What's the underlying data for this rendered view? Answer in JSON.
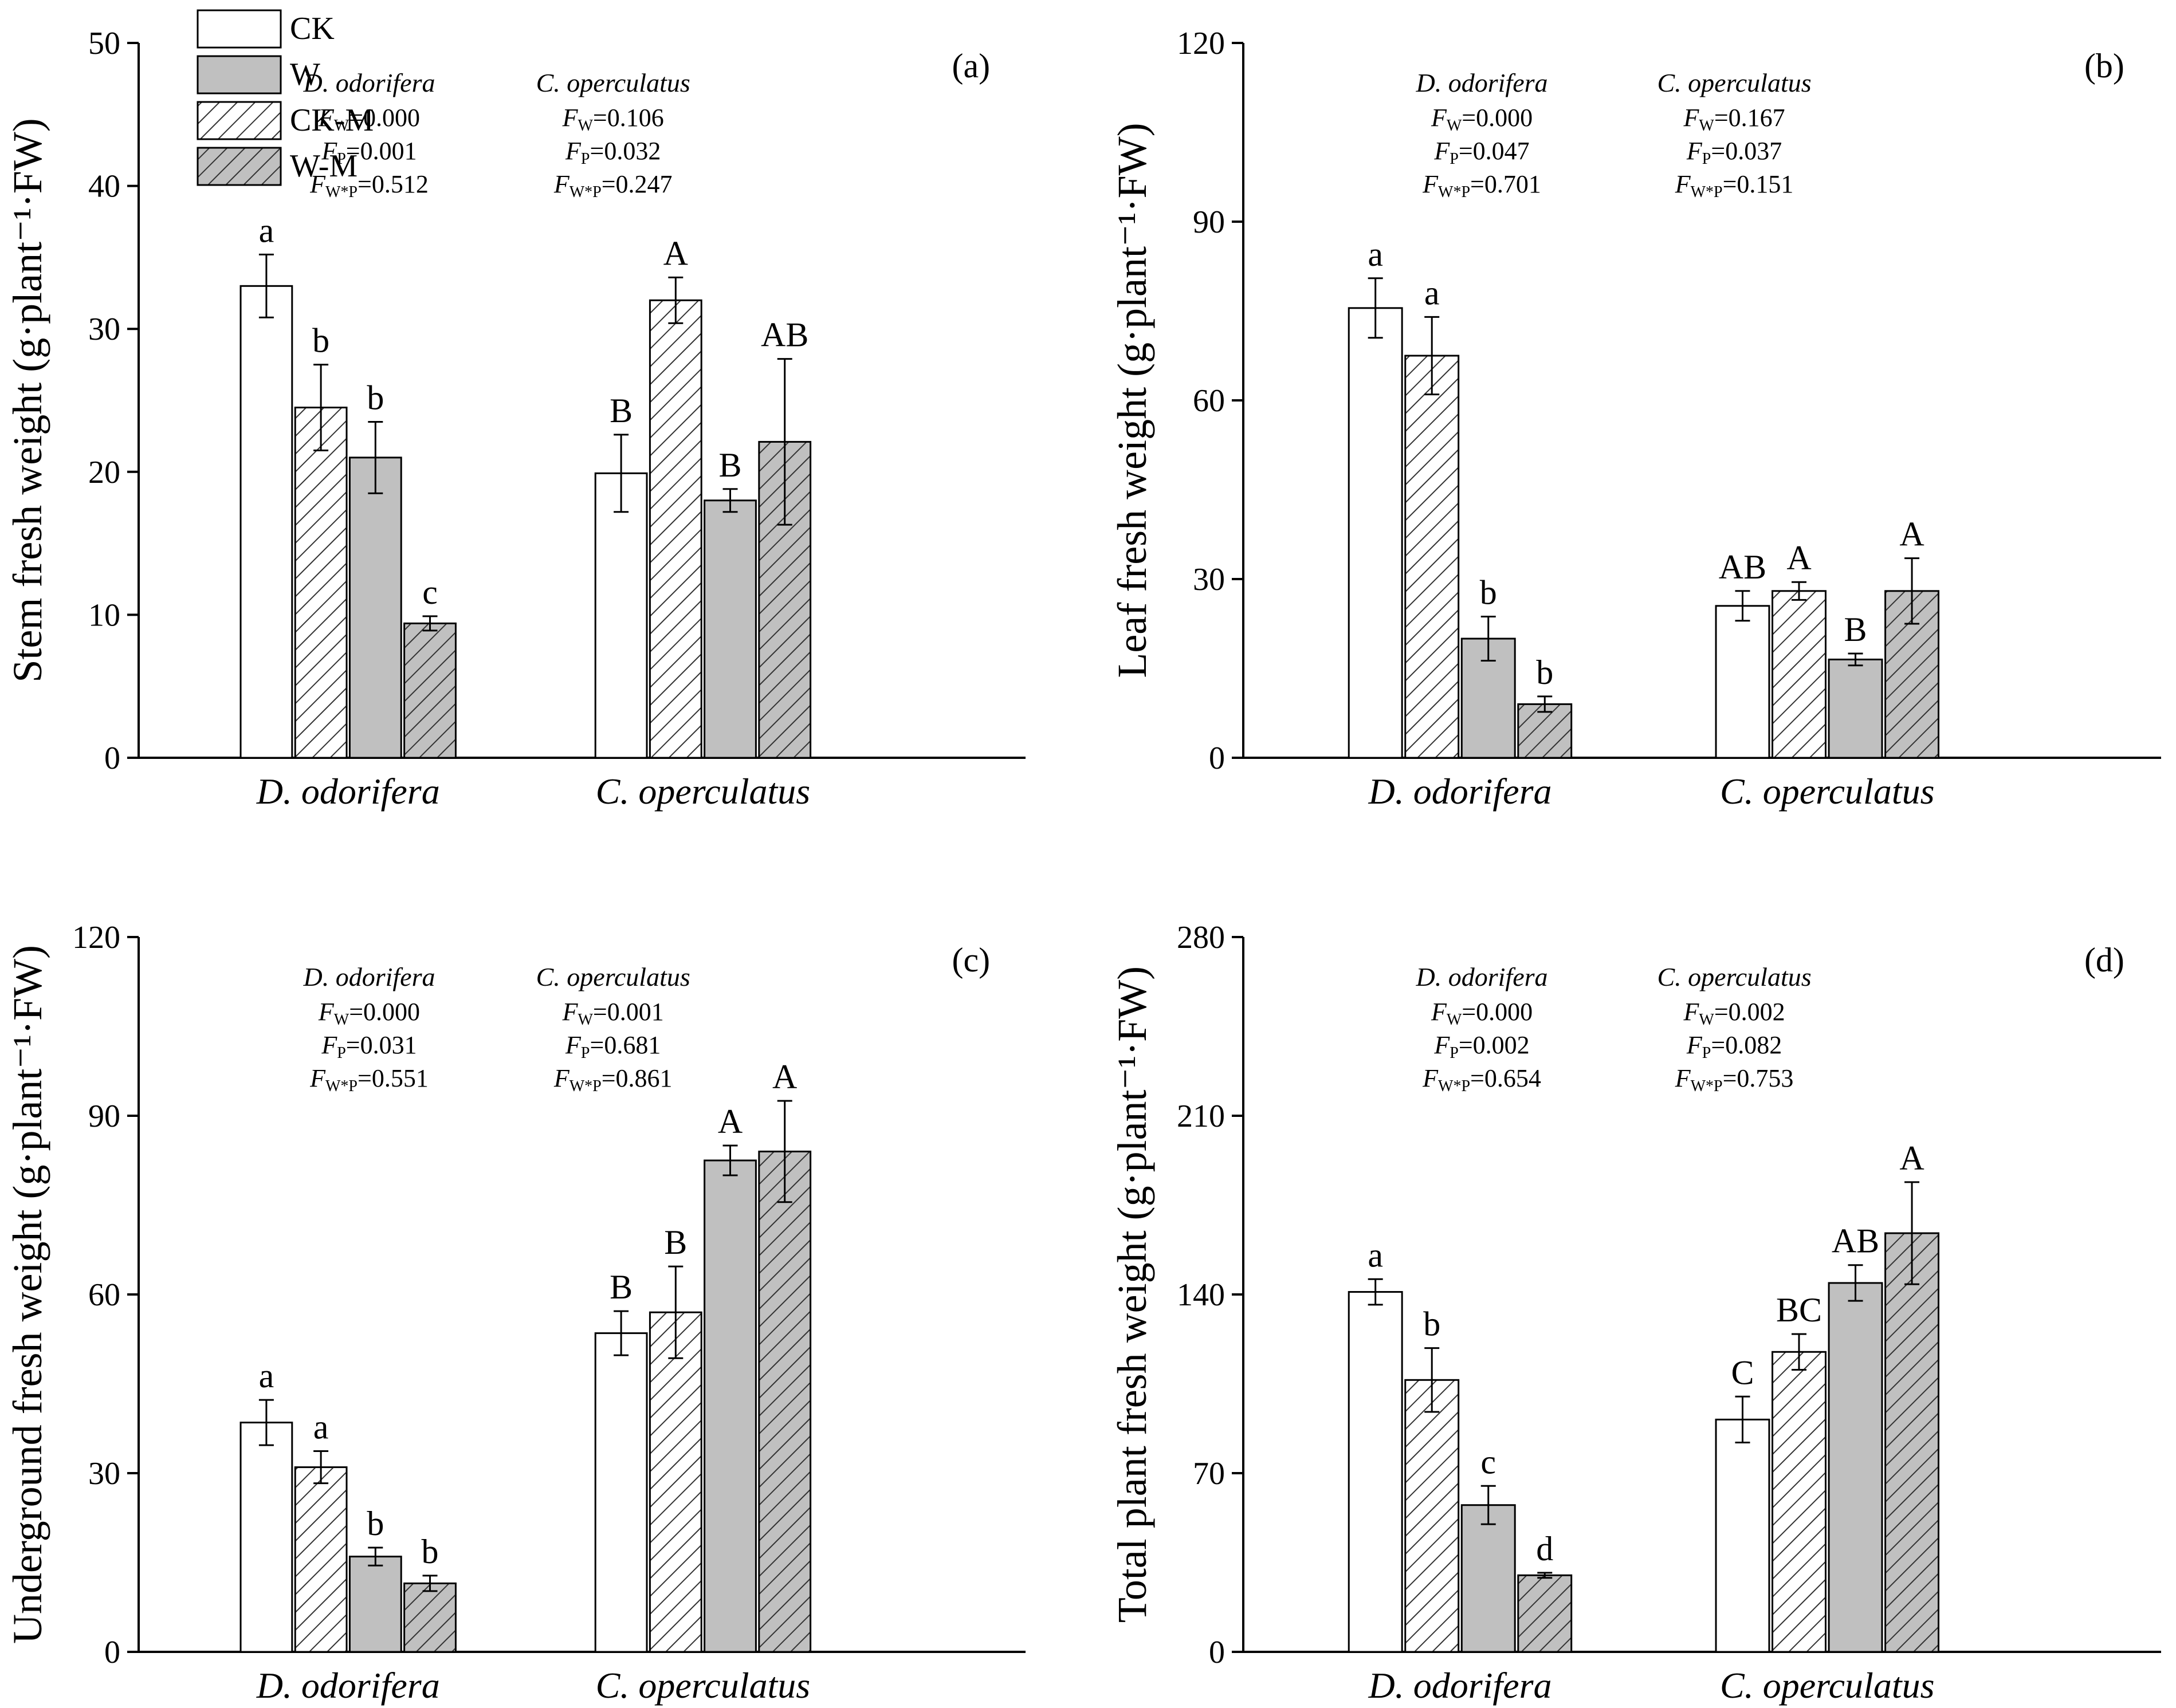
{
  "colors": {
    "W": "#c0c0c0",
    "CK": "#ffffff",
    "hatch": "#333333",
    "axis": "#000000"
  },
  "chart_data": [
    {
      "type": "bar",
      "panel": "(a)",
      "ylabel": "Stem fresh weight (g·plant⁻¹·FW)",
      "ylim": [
        0,
        50
      ],
      "yticks": [
        0,
        10,
        20,
        30,
        40,
        50
      ],
      "categories": [
        "D. odorifera",
        "C. operculatus"
      ],
      "legend_placement": "top-left",
      "series": [
        {
          "name": "CK",
          "values": [
            33.0,
            19.9
          ],
          "errors": [
            2.2,
            2.7
          ],
          "letters": [
            "a",
            "B"
          ]
        },
        {
          "name": "CK-M",
          "values": [
            24.5,
            32.0
          ],
          "errors": [
            3.0,
            1.6
          ],
          "letters": [
            "b",
            "A"
          ]
        },
        {
          "name": "W",
          "values": [
            21.0,
            18.0
          ],
          "errors": [
            2.5,
            0.8
          ],
          "letters": [
            "b",
            "B"
          ]
        },
        {
          "name": "W-M",
          "values": [
            9.4,
            22.1
          ],
          "errors": [
            0.5,
            5.8
          ],
          "letters": [
            "c",
            "AB"
          ]
        }
      ],
      "stats": {
        "headers": [
          "D. odorifera",
          "C. operculatus"
        ],
        "rows": [
          {
            "F": "F",
            "sub": "W",
            "values": [
              "=0.000",
              "=0.106"
            ]
          },
          {
            "F": "F",
            "sub": "P",
            "values": [
              "=0.001",
              "=0.032"
            ]
          },
          {
            "F": "F",
            "sub": "W*P",
            "values": [
              "=0.512",
              "=0.247"
            ]
          }
        ]
      }
    },
    {
      "type": "bar",
      "panel": "(b)",
      "ylabel": "Leaf  fresh weight (g·plant⁻¹·FW)",
      "ylim": [
        0,
        120
      ],
      "yticks": [
        0,
        30,
        60,
        90,
        120
      ],
      "categories": [
        "D. odorifera",
        "C. operculatus"
      ],
      "series": [
        {
          "name": "CK",
          "values": [
            75.5,
            25.5
          ],
          "errors": [
            5.0,
            2.5
          ],
          "letters": [
            "a",
            "AB"
          ]
        },
        {
          "name": "CK-M",
          "values": [
            67.5,
            28.0
          ],
          "errors": [
            6.5,
            1.5
          ],
          "letters": [
            "a",
            "A"
          ]
        },
        {
          "name": "W",
          "values": [
            20.0,
            16.5
          ],
          "errors": [
            3.7,
            1.0
          ],
          "letters": [
            "b",
            "B"
          ]
        },
        {
          "name": "W-M",
          "values": [
            9.0,
            28.0
          ],
          "errors": [
            1.3,
            5.5
          ],
          "letters": [
            "b",
            "A"
          ]
        }
      ],
      "stats": {
        "headers": [
          "D. odorifera",
          "C. operculatus"
        ],
        "rows": [
          {
            "F": "F",
            "sub": "W",
            "values": [
              "=0.000",
              "=0.167"
            ]
          },
          {
            "F": "F",
            "sub": "P",
            "values": [
              "=0.047",
              "=0.037"
            ]
          },
          {
            "F": "F",
            "sub": "W*P",
            "values": [
              "=0.701",
              "=0.151"
            ]
          }
        ]
      }
    },
    {
      "type": "bar",
      "panel": "(c)",
      "ylabel": "Underground fresh weight (g·plant⁻¹·FW)",
      "ylim": [
        0,
        120
      ],
      "yticks": [
        0,
        30,
        60,
        90,
        120
      ],
      "categories": [
        "D. odorifera",
        "C. operculatus"
      ],
      "series": [
        {
          "name": "CK",
          "values": [
            38.5,
            53.5
          ],
          "errors": [
            3.8,
            3.7
          ],
          "letters": [
            "a",
            "B"
          ]
        },
        {
          "name": "CK-M",
          "values": [
            31.0,
            57.0
          ],
          "errors": [
            2.7,
            7.7
          ],
          "letters": [
            "a",
            "B"
          ]
        },
        {
          "name": "W",
          "values": [
            16.0,
            82.5
          ],
          "errors": [
            1.5,
            2.5
          ],
          "letters": [
            "b",
            "A"
          ]
        },
        {
          "name": "W-M",
          "values": [
            11.5,
            84.0
          ],
          "errors": [
            1.3,
            8.5
          ],
          "letters": [
            "b",
            "A"
          ]
        }
      ],
      "stats": {
        "headers": [
          "D. odorifera",
          "C. operculatus"
        ],
        "rows": [
          {
            "F": "F",
            "sub": "W",
            "values": [
              "=0.000",
              "=0.001"
            ]
          },
          {
            "F": "F",
            "sub": "P",
            "values": [
              "=0.031",
              "=0.681"
            ]
          },
          {
            "F": "F",
            "sub": "W*P",
            "values": [
              "=0.551",
              "=0.861"
            ]
          }
        ]
      }
    },
    {
      "type": "bar",
      "panel": "(d)",
      "ylabel": "Total plant fresh weight (g·plant⁻¹·FW)",
      "ylim": [
        0,
        280
      ],
      "yticks": [
        0,
        70,
        140,
        210,
        280
      ],
      "categories": [
        "D. odorifera",
        "C. operculatus"
      ],
      "series": [
        {
          "name": "CK",
          "values": [
            141.0,
            91.0
          ],
          "errors": [
            5.0,
            9.0
          ],
          "letters": [
            "a",
            "C"
          ]
        },
        {
          "name": "CK-M",
          "values": [
            106.5,
            117.5
          ],
          "errors": [
            12.5,
            7.0
          ],
          "letters": [
            "b",
            "BC"
          ]
        },
        {
          "name": "W",
          "values": [
            57.5,
            144.5
          ],
          "errors": [
            7.5,
            7.0
          ],
          "letters": [
            "c",
            "AB"
          ]
        },
        {
          "name": "W-M",
          "values": [
            30.0,
            164.0
          ],
          "errors": [
            1.0,
            20.0
          ],
          "letters": [
            "d",
            "A"
          ]
        }
      ],
      "stats": {
        "headers": [
          "D. odorifera",
          "C. operculatus"
        ],
        "rows": [
          {
            "F": "F",
            "sub": "W",
            "values": [
              "=0.000",
              "=0.002"
            ]
          },
          {
            "F": "F",
            "sub": "P",
            "values": [
              "=0.002",
              "=0.082"
            ]
          },
          {
            "F": "F",
            "sub": "W*P",
            "values": [
              "=0.654",
              "=0.753"
            ]
          }
        ]
      }
    }
  ],
  "legend": [
    "CK",
    "W",
    "CK-M",
    "W-M"
  ]
}
